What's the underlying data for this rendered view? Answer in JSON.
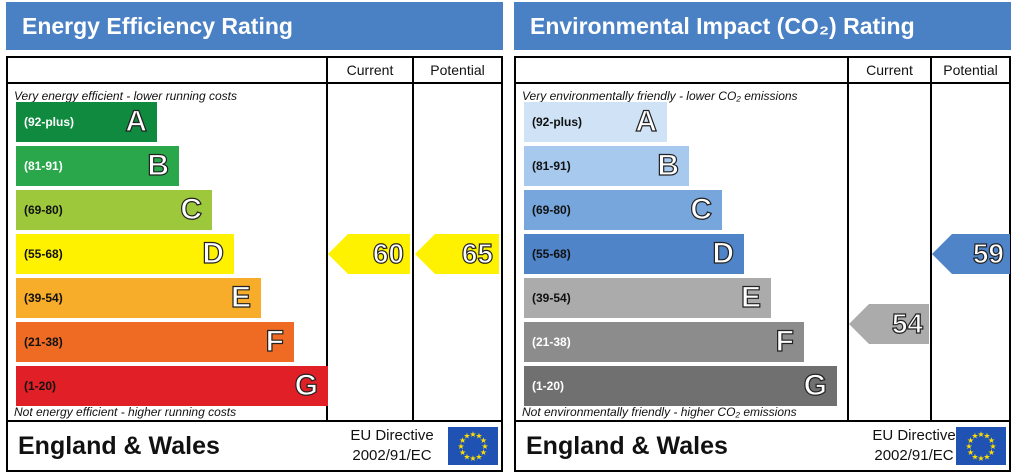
{
  "panels": [
    {
      "title": "Energy Efficiency Rating",
      "col_current": "Current",
      "col_potential": "Potential",
      "top_note": "Very energy efficient - lower running costs",
      "bottom_note": "Not energy efficient - higher running costs",
      "bands": [
        {
          "range": "(92-plus)",
          "letter": "A",
          "color": "#0f8a3e",
          "text_color": "#ffffff"
        },
        {
          "range": "(81-91)",
          "letter": "B",
          "color": "#2aa74a",
          "text_color": "#ffffff"
        },
        {
          "range": "(69-80)",
          "letter": "C",
          "color": "#9dc83b",
          "text_color": "#111111"
        },
        {
          "range": "(55-68)",
          "letter": "D",
          "color": "#fff200",
          "text_color": "#111111"
        },
        {
          "range": "(39-54)",
          "letter": "E",
          "color": "#f7ac2a",
          "text_color": "#111111"
        },
        {
          "range": "(21-38)",
          "letter": "F",
          "color": "#ef6b24",
          "text_color": "#111111"
        },
        {
          "range": "(1-20)",
          "letter": "G",
          "color": "#e11f26",
          "text_color": "#111111"
        }
      ],
      "current": {
        "value": "60",
        "band": "D",
        "color": "#fff200"
      },
      "potential": {
        "value": "65",
        "band": "D",
        "color": "#fff200"
      },
      "footer_region": "England & Wales",
      "footer_directive_line1": "EU Directive",
      "footer_directive_line2": "2002/91/EC"
    },
    {
      "title": "Environmental Impact (CO₂) Rating",
      "col_current": "Current",
      "col_potential": "Potential",
      "top_note": "Very environmentally friendly - lower CO₂ emissions",
      "bottom_note": "Not environmentally friendly - higher CO₂ emissions",
      "bands": [
        {
          "range": "(92-plus)",
          "letter": "A",
          "color": "#cfe2f6",
          "text_color": "#111111"
        },
        {
          "range": "(81-91)",
          "letter": "B",
          "color": "#a7c9ee",
          "text_color": "#111111"
        },
        {
          "range": "(69-80)",
          "letter": "C",
          "color": "#76a6dc",
          "text_color": "#111111"
        },
        {
          "range": "(55-68)",
          "letter": "D",
          "color": "#4f84c8",
          "text_color": "#111111"
        },
        {
          "range": "(39-54)",
          "letter": "E",
          "color": "#ababab",
          "text_color": "#111111"
        },
        {
          "range": "(21-38)",
          "letter": "F",
          "color": "#8c8c8c",
          "text_color": "#ffffff"
        },
        {
          "range": "(1-20)",
          "letter": "G",
          "color": "#707070",
          "text_color": "#ffffff"
        }
      ],
      "current": {
        "value": "54",
        "band": "E",
        "color": "#ababab"
      },
      "potential": {
        "value": "59",
        "band": "D",
        "color": "#4f84c8"
      },
      "footer_region": "England & Wales",
      "footer_directive_line1": "EU Directive",
      "footer_directive_line2": "2002/91/EC"
    }
  ],
  "chart_data": [
    {
      "type": "table",
      "title": "Energy Efficiency Rating",
      "categories": [
        "A",
        "B",
        "C",
        "D",
        "E",
        "F",
        "G"
      ],
      "ranges": [
        "(92-plus)",
        "(81-91)",
        "(69-80)",
        "(55-68)",
        "(39-54)",
        "(21-38)",
        "(1-20)"
      ],
      "current": 60,
      "potential": 65
    },
    {
      "type": "table",
      "title": "Environmental Impact (CO₂) Rating",
      "categories": [
        "A",
        "B",
        "C",
        "D",
        "E",
        "F",
        "G"
      ],
      "ranges": [
        "(92-plus)",
        "(81-91)",
        "(69-80)",
        "(55-68)",
        "(39-54)",
        "(21-38)",
        "(1-20)"
      ],
      "current": 54,
      "potential": 59
    }
  ]
}
